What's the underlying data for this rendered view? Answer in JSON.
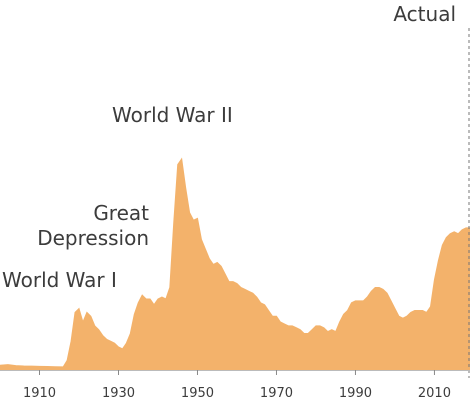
{
  "chart_data": {
    "type": "area",
    "title": "",
    "xlabel": "",
    "ylabel": "",
    "xlim": [
      1900,
      2019
    ],
    "ylim": [
      0,
      125
    ],
    "grid": false,
    "fill_color": "#f3b26b",
    "actual_line_color": "#777777",
    "x_ticks": [
      1910,
      1930,
      1950,
      1970,
      1990,
      2010
    ],
    "x_tick_labels": [
      "1910",
      "1930",
      "1950",
      "1970",
      "1990",
      "2010"
    ],
    "annotations": [
      {
        "id": "world-war-i",
        "text": "World War I",
        "x": 1918,
        "y": 19
      },
      {
        "id": "great-depression-1",
        "text": "Great",
        "x": 1934,
        "y": 42
      },
      {
        "id": "great-depression-2",
        "text": "Depression",
        "x": 1934,
        "y": 42
      },
      {
        "id": "world-war-ii",
        "text": "World War II",
        "x": 1946,
        "y": 106
      },
      {
        "id": "actual",
        "text": "Actual",
        "x": 2018,
        "y": 100
      }
    ],
    "series": [
      {
        "x": [
          1900,
          1902,
          1904,
          1906,
          1908,
          1910,
          1912,
          1914,
          1916,
          1917,
          1918,
          1919,
          1920,
          1921,
          1922,
          1923,
          1924,
          1925,
          1926,
          1927,
          1928,
          1929,
          1930,
          1931,
          1932,
          1933,
          1934,
          1935,
          1936,
          1937,
          1938,
          1939,
          1940,
          1941,
          1942,
          1943,
          1944,
          1945,
          1946,
          1947,
          1948,
          1949,
          1950,
          1951,
          1952,
          1953,
          1954,
          1955,
          1956,
          1957,
          1958,
          1959,
          1960,
          1961,
          1962,
          1963,
          1964,
          1965,
          1966,
          1967,
          1968,
          1969,
          1970,
          1971,
          1972,
          1973,
          1974,
          1975,
          1976,
          1977,
          1978,
          1979,
          1980,
          1981,
          1982,
          1983,
          1984,
          1985,
          1986,
          1987,
          1988,
          1989,
          1990,
          1991,
          1992,
          1993,
          1994,
          1995,
          1996,
          1997,
          1998,
          1999,
          2000,
          2001,
          2002,
          2003,
          2004,
          2005,
          2006,
          2007,
          2008,
          2009,
          2010,
          2011,
          2012,
          2013,
          2014,
          2015,
          2016,
          2017,
          2018,
          2019
        ],
        "values": [
          2.5,
          2.8,
          2.3,
          2.1,
          2.0,
          1.9,
          1.8,
          1.7,
          1.6,
          5,
          15,
          30,
          32,
          25,
          30,
          28,
          23,
          21,
          18,
          16,
          15,
          14,
          12,
          11,
          14,
          19,
          29,
          35,
          39,
          37,
          37,
          34,
          37,
          38,
          37,
          43,
          77,
          107,
          110,
          95,
          82,
          78,
          79,
          68,
          63,
          58,
          55,
          56,
          54,
          50,
          46,
          46,
          45,
          43,
          42,
          41,
          40,
          38,
          35,
          34,
          31,
          28,
          28,
          25,
          24,
          23,
          23,
          22,
          21,
          19,
          19,
          21,
          23,
          23,
          22,
          20,
          21,
          20,
          25,
          29,
          31,
          35,
          36,
          36,
          36,
          38,
          41,
          43,
          43,
          42,
          40,
          36,
          32,
          28,
          27,
          28,
          30,
          31,
          31,
          31,
          30,
          33,
          47,
          57,
          65,
          69,
          71,
          72,
          71,
          73,
          74,
          74
        ]
      }
    ]
  }
}
